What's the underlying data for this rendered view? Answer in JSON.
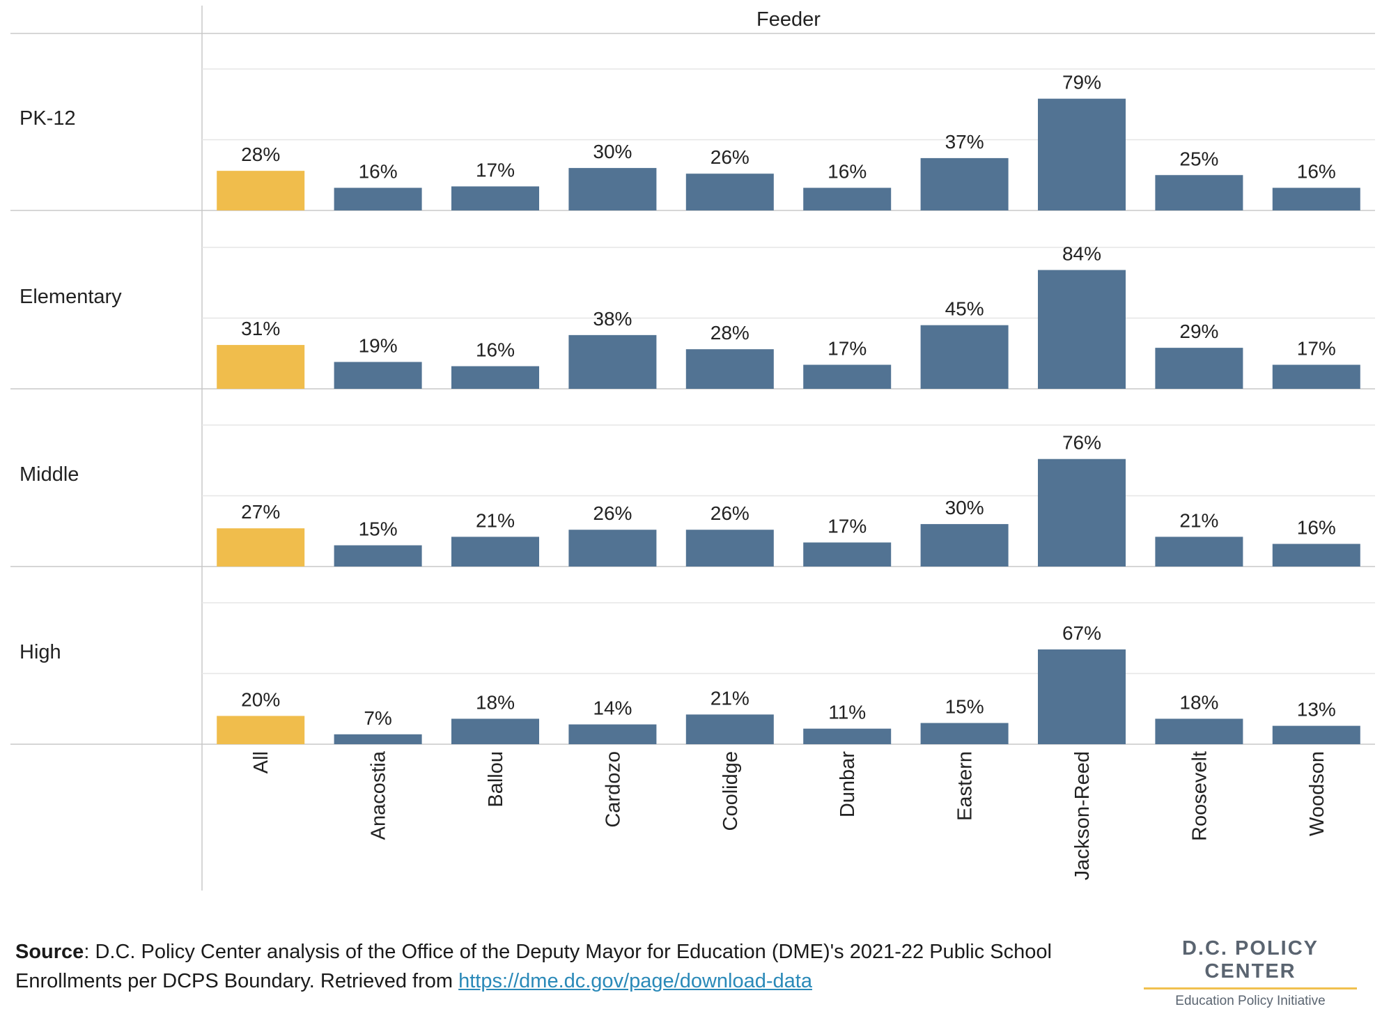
{
  "chart_data": {
    "type": "bar",
    "column_header": "Feeder",
    "categories": [
      "All",
      "Anacostia",
      "Ballou",
      "Cardozo",
      "Coolidge",
      "Dunbar",
      "Eastern",
      "Jackson-Reed",
      "Roosevelt",
      "Woodson"
    ],
    "ylim": [
      0,
      100
    ],
    "grid": true,
    "rows": [
      {
        "label": "PK-12",
        "values": [
          28,
          16,
          17,
          30,
          26,
          16,
          37,
          79,
          25,
          16
        ],
        "labels": [
          "28%",
          "16%",
          "17%",
          "30%",
          "26%",
          "16%",
          "37%",
          "79%",
          "25%",
          "16%"
        ]
      },
      {
        "label": "Elementary",
        "values": [
          31,
          19,
          16,
          38,
          28,
          17,
          45,
          84,
          29,
          17
        ],
        "labels": [
          "31%",
          "19%",
          "16%",
          "38%",
          "28%",
          "17%",
          "45%",
          "84%",
          "29%",
          "17%"
        ]
      },
      {
        "label": "Middle",
        "values": [
          27,
          15,
          21,
          26,
          26,
          17,
          30,
          76,
          21,
          16
        ],
        "labels": [
          "27%",
          "15%",
          "21%",
          "26%",
          "26%",
          "17%",
          "30%",
          "76%",
          "21%",
          "16%"
        ]
      },
      {
        "label": "High",
        "values": [
          20,
          7,
          18,
          14,
          21,
          11,
          15,
          67,
          18,
          13
        ],
        "labels": [
          "20%",
          "7%",
          "18%",
          "14%",
          "21%",
          "11%",
          "15%",
          "67%",
          "18%",
          "13%"
        ]
      }
    ],
    "colors": {
      "highlight": "#f0bd4c",
      "bar": "#527393",
      "grid": "#e6e6e6",
      "axis": "#c8c8c8"
    }
  },
  "footer": {
    "source_label": "Source",
    "source_text": ": D.C. Policy Center analysis of the Office of the Deputy Mayor for Education (DME)'s 2021-22 Public School Enrollments per DCPS Boundary. Retrieved from ",
    "source_link": "https://dme.dc.gov/page/download-data"
  },
  "logo": {
    "org": "D.C. POLICY CENTER",
    "subtitle": "Education Policy Initiative"
  }
}
